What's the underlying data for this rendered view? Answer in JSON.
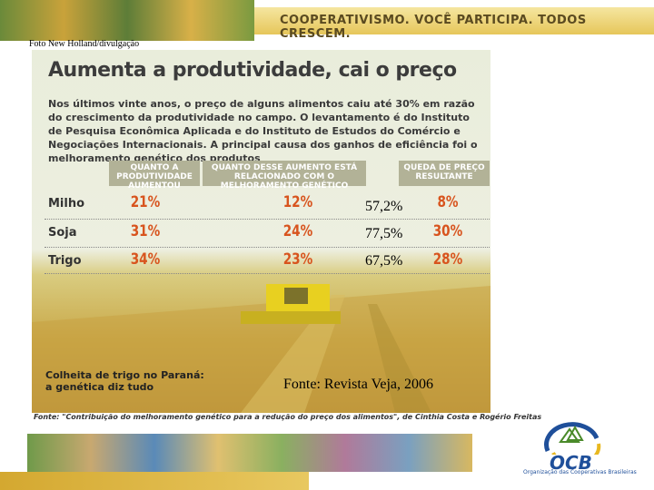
{
  "header": {
    "slogan": "COOPERATIVISMO. VOCÊ PARTICIPA. TODOS CRESCEM."
  },
  "photo_credit": "Foto New Holland/divulgação",
  "infographic": {
    "title": "Aumenta a produtividade, cai o preço",
    "text": "Nos últimos vinte anos, o preço de alguns alimentos caiu até 30% em razão do crescimento da produtividade no campo. O levantamento é do Instituto de Pesquisa Econômica Aplicada e do Instituto de Estudos do Comércio e Negociações Internacionais. A principal causa dos ganhos de eficiência foi o melhoramento genético dos produtos",
    "table": {
      "columns": [
        "QUANTO A PRODUTIVIDADE AUMENTOU",
        "QUANTO DESSE AUMENTO ESTÁ RELACIONADO COM O MELHORAMENTO GENÉTICO",
        "QUEDA DE PREÇO RESULTANTE"
      ],
      "rows": [
        {
          "label": "Milho",
          "values": [
            "21%",
            "12%",
            "8%"
          ]
        },
        {
          "label": "Soja",
          "values": [
            "31%",
            "24%",
            "30%"
          ]
        },
        {
          "label": "Trigo",
          "values": [
            "34%",
            "23%",
            "28%"
          ]
        }
      ]
    },
    "caption": [
      "Colheita de trigo no Paraná:",
      "a genética diz tudo"
    ],
    "source": "Fonte: \"Contribuição do melhoramento genético para a redução do preço dos alimentos\", de Cinthia Costa e Rogério Freitas"
  },
  "overlay": {
    "percentages": [
      "57,2%",
      "77,5%",
      "67,5%"
    ],
    "source": "Fonte: Revista Veja, 2006"
  },
  "logo": {
    "name": "OCB",
    "subtitle": "Organização das Cooperativas Brasileiras"
  }
}
